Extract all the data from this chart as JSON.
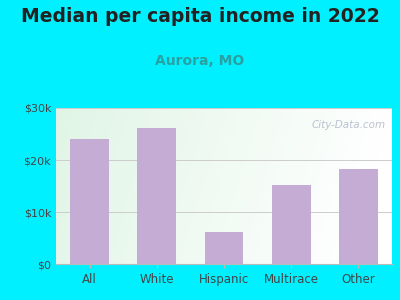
{
  "title": "Median per capita income in 2022",
  "subtitle": "Aurora, MO",
  "categories": [
    "All",
    "White",
    "Hispanic",
    "Multirace",
    "Other"
  ],
  "values": [
    24000,
    26200,
    6200,
    15200,
    18200
  ],
  "bar_color": "#c4acd4",
  "background_outer": "#00f0ff",
  "title_fontsize": 13.5,
  "title_color": "#222222",
  "subtitle_fontsize": 10,
  "subtitle_color": "#2aa0a0",
  "watermark": "City-Data.com",
  "ylim": [
    0,
    30000
  ],
  "yticks": [
    0,
    10000,
    20000,
    30000
  ],
  "ytick_labels": [
    "$0",
    "$10k",
    "$20k",
    "$30k"
  ],
  "tick_fontsize": 8,
  "xlabel_fontsize": 8.5
}
